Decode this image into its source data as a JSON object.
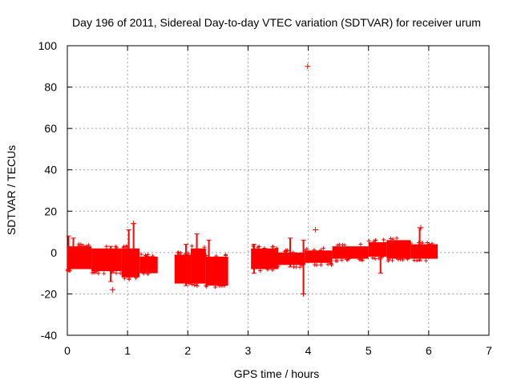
{
  "chart_data": {
    "type": "scatter",
    "title": "Day 196 of 2011, Sidereal Day-to-day VTEC variation (SDTVAR) for receiver urum",
    "xlabel": "GPS time / hours",
    "ylabel": "SDTVAR / TECUs",
    "xlim": [
      0,
      7
    ],
    "ylim": [
      -40,
      100
    ],
    "xticks": [
      0,
      1,
      2,
      3,
      4,
      5,
      6,
      7
    ],
    "yticks": [
      -40,
      -20,
      0,
      20,
      40,
      60,
      80,
      100
    ],
    "grid": true,
    "marker": "+",
    "color": "#ff0000",
    "note": "Dense point clusters summarized as estimated bands (approximate).",
    "bands": [
      {
        "x0": 0.0,
        "x1": 0.4,
        "ymin": -8,
        "ymax": 3
      },
      {
        "x0": 0.4,
        "x1": 0.9,
        "ymin": -9,
        "ymax": 2
      },
      {
        "x0": 0.9,
        "x1": 1.2,
        "ymin": -12,
        "ymax": 2
      },
      {
        "x0": 1.2,
        "x1": 1.5,
        "ymin": -10,
        "ymax": -2
      },
      {
        "x0": 1.78,
        "x1": 2.05,
        "ymin": -15,
        "ymax": -1
      },
      {
        "x0": 2.05,
        "x1": 2.3,
        "ymin": -15,
        "ymax": 2
      },
      {
        "x0": 2.3,
        "x1": 2.67,
        "ymin": -16,
        "ymax": -2
      },
      {
        "x0": 3.05,
        "x1": 3.5,
        "ymin": -8,
        "ymax": 2
      },
      {
        "x0": 3.5,
        "x1": 3.95,
        "ymin": -6,
        "ymax": 0
      },
      {
        "x0": 3.95,
        "x1": 4.4,
        "ymin": -5,
        "ymax": 1
      },
      {
        "x0": 4.4,
        "x1": 5.0,
        "ymin": -3,
        "ymax": 3
      },
      {
        "x0": 5.0,
        "x1": 5.3,
        "ymin": -2,
        "ymax": 5
      },
      {
        "x0": 5.3,
        "x1": 5.7,
        "ymin": -3,
        "ymax": 6
      },
      {
        "x0": 5.7,
        "x1": 6.15,
        "ymin": -3,
        "ymax": 4
      }
    ],
    "spikes": [
      {
        "x": 0.02,
        "ymin": -8,
        "ymax": 8
      },
      {
        "x": 0.1,
        "ymin": -7,
        "ymax": 7
      },
      {
        "x": 0.72,
        "ymin": -14,
        "ymax": 3
      },
      {
        "x": 1.02,
        "ymin": -12,
        "ymax": 11
      },
      {
        "x": 1.1,
        "ymin": -10,
        "ymax": 14
      },
      {
        "x": 1.97,
        "ymin": -16,
        "ymax": 4
      },
      {
        "x": 2.15,
        "ymin": -16,
        "ymax": 9
      },
      {
        "x": 2.35,
        "ymin": -15,
        "ymax": 6
      },
      {
        "x": 3.1,
        "ymin": -10,
        "ymax": 4
      },
      {
        "x": 3.7,
        "ymin": -7,
        "ymax": 7
      },
      {
        "x": 3.92,
        "ymin": -20,
        "ymax": 6
      },
      {
        "x": 5.2,
        "ymin": -10,
        "ymax": 3
      },
      {
        "x": 5.85,
        "ymin": -4,
        "ymax": 12
      }
    ],
    "outliers": [
      {
        "x": 3.99,
        "y": 90
      },
      {
        "x": 4.12,
        "y": 11
      },
      {
        "x": 0.75,
        "y": -18
      },
      {
        "x": 1.1,
        "y": 14
      },
      {
        "x": 3.92,
        "y": -20
      },
      {
        "x": 5.87,
        "y": 12
      }
    ]
  }
}
